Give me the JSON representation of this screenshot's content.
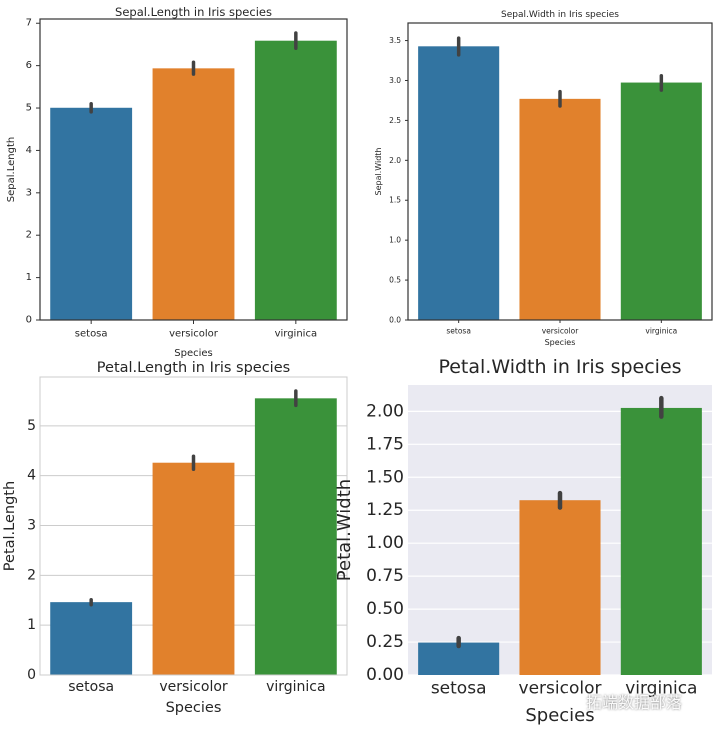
{
  "chart_data": [
    {
      "type": "bar",
      "title": "Sepal.Length in Iris species",
      "xlabel": "Species",
      "ylabel": "Sepal.Length",
      "categories": [
        "setosa",
        "versicolor",
        "virginica"
      ],
      "values": [
        5.006,
        5.936,
        6.588
      ],
      "error": [
        [
          4.91,
          5.1
        ],
        [
          5.8,
          6.08
        ],
        [
          6.41,
          6.77
        ]
      ],
      "ylim": [
        0,
        7.1
      ],
      "yticks": [
        "0",
        "1",
        "2",
        "3",
        "4",
        "5",
        "6",
        "7"
      ],
      "grid": false,
      "style": "ticks"
    },
    {
      "type": "bar",
      "title": "Sepal.Width in Iris species",
      "xlabel": "Species",
      "ylabel": "Sepal.Width",
      "categories": [
        "setosa",
        "versicolor",
        "virginica"
      ],
      "values": [
        3.428,
        2.77,
        2.974
      ],
      "error": [
        [
          3.32,
          3.53
        ],
        [
          2.68,
          2.86
        ],
        [
          2.88,
          3.06
        ]
      ],
      "ylim": [
        0,
        3.72
      ],
      "yticks": [
        "0.0",
        "0.5",
        "1.0",
        "1.5",
        "2.0",
        "2.5",
        "3.0",
        "3.5"
      ],
      "grid": false,
      "style": "ticks"
    },
    {
      "type": "bar",
      "title": "Petal.Length in Iris species",
      "xlabel": "Species",
      "ylabel": "Petal.Length",
      "categories": [
        "setosa",
        "versicolor",
        "virginica"
      ],
      "values": [
        1.462,
        4.26,
        5.552
      ],
      "error": [
        [
          1.41,
          1.51
        ],
        [
          4.13,
          4.39
        ],
        [
          5.41,
          5.7
        ]
      ],
      "ylim": [
        0,
        5.98
      ],
      "yticks": [
        "0",
        "1",
        "2",
        "3",
        "4",
        "5"
      ],
      "grid": true,
      "style": "whitegrid"
    },
    {
      "type": "bar",
      "title": "Petal.Width in Iris species",
      "xlabel": "Species",
      "ylabel": "Petal.Width",
      "categories": [
        "setosa",
        "versicolor",
        "virginica"
      ],
      "values": [
        0.246,
        1.326,
        2.026
      ],
      "error": [
        [
          0.22,
          0.28
        ],
        [
          1.27,
          1.38
        ],
        [
          1.96,
          2.1
        ]
      ],
      "ylim": [
        0,
        2.2
      ],
      "yticks": [
        "0.00",
        "0.25",
        "0.50",
        "0.75",
        "1.00",
        "1.25",
        "1.50",
        "1.75",
        "2.00"
      ],
      "grid": true,
      "style": "darkgrid"
    }
  ],
  "colors": {
    "setosa": "#3274a1",
    "versicolor": "#e1812c",
    "virginica": "#3a923a",
    "errorbar": "#424242",
    "darkgrid_bg": "#eaeaf2",
    "whitegrid_line": "#cccccc"
  },
  "watermark": {
    "icon": "wechat-icon",
    "text": "拓端数据部落"
  }
}
